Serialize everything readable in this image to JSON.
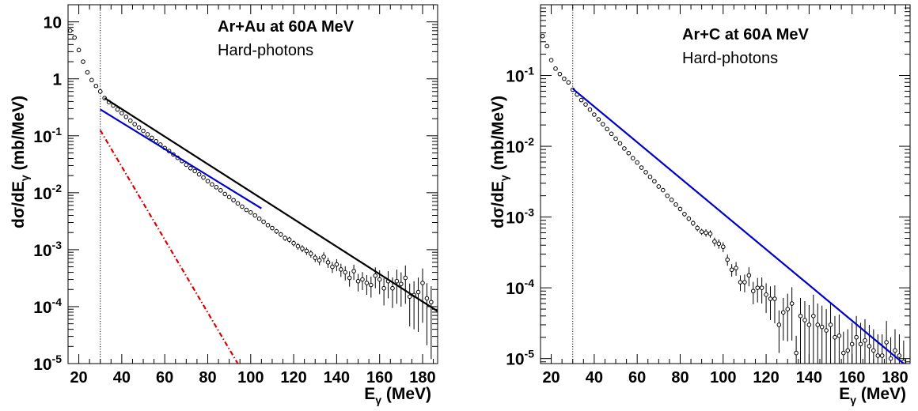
{
  "chart_data": [
    {
      "type": "scatter",
      "title": "Ar+Au at 60A MeV",
      "subtitle": "Hard-photons",
      "xlabel": {
        "main": "E",
        "sub": "γ",
        "unit": "(MeV)"
      },
      "ylabel": {
        "pre": "dσ/dE",
        "sub": "γ",
        "unit": "(mb/MeV)"
      },
      "xlim": [
        15,
        187
      ],
      "ylim": [
        1e-05,
        20
      ],
      "yscale": "log",
      "x_ticks": [
        20,
        40,
        60,
        80,
        100,
        120,
        140,
        160,
        180
      ],
      "y_decades": [
        {
          "value": 10,
          "base": "10",
          "exp": ""
        },
        {
          "value": 1,
          "base": "1",
          "exp": ""
        },
        {
          "value": 0.1,
          "base": "10",
          "exp": "-1"
        },
        {
          "value": 0.01,
          "base": "10",
          "exp": "-2"
        },
        {
          "value": 0.001,
          "base": "10",
          "exp": "-3"
        },
        {
          "value": 0.0001,
          "base": "10",
          "exp": "-4"
        },
        {
          "value": 1e-05,
          "base": "10",
          "exp": "-5"
        }
      ],
      "threshold_line": {
        "x": 30,
        "color": "#000000",
        "style": "dotted"
      },
      "series": [
        {
          "kind": "points",
          "color": "#000000",
          "x": [
            16,
            18,
            20,
            22,
            24,
            26,
            28,
            30,
            32,
            34,
            36,
            38,
            40,
            42,
            44,
            46,
            48,
            50,
            52,
            54,
            56,
            58,
            60,
            62,
            64,
            66,
            68,
            70,
            72,
            74,
            76,
            78,
            80,
            82,
            84,
            86,
            88,
            90,
            92,
            94,
            96,
            98,
            100,
            102,
            104,
            106,
            108,
            110,
            112,
            114,
            116,
            118,
            120,
            122,
            124,
            126,
            128,
            130,
            132,
            134,
            136,
            138,
            140,
            142,
            144,
            146,
            148,
            150,
            152,
            154,
            156,
            158,
            160,
            162,
            164,
            166,
            168,
            170,
            172,
            174,
            176,
            178,
            180,
            182,
            184
          ],
          "y": [
            7,
            5.3,
            3.2,
            2.0,
            1.3,
            0.95,
            0.75,
            0.6,
            0.46,
            0.39,
            0.34,
            0.29,
            0.25,
            0.215,
            0.185,
            0.16,
            0.14,
            0.122,
            0.106,
            0.092,
            0.08,
            0.07,
            0.061,
            0.054,
            0.047,
            0.041,
            0.036,
            0.031,
            0.027,
            0.024,
            0.021,
            0.0185,
            0.016,
            0.014,
            0.0125,
            0.011,
            0.0095,
            0.0084,
            0.0074,
            0.0065,
            0.0057,
            0.005,
            0.0045,
            0.004,
            0.0035,
            0.0031,
            0.0027,
            0.0024,
            0.0021,
            0.00185,
            0.0016,
            0.0015,
            0.0013,
            0.00115,
            0.00105,
            0.00095,
            0.00085,
            0.00072,
            0.00065,
            0.00075,
            0.0006,
            0.0005,
            0.00055,
            0.00045,
            0.0004,
            0.00032,
            0.00042,
            0.00028,
            0.0003,
            0.00026,
            0.00024,
            0.00035,
            0.0003,
            0.00021,
            0.00028,
            0.00021,
            0.00028,
            0.00025,
            0.00032,
            0.00015,
            0.00016,
            0.00018,
            0.00026,
            0.00014,
            0.00012
          ],
          "yerr_rel": [
            0.02,
            0.02,
            0.02,
            0.02,
            0.02,
            0.02,
            0.02,
            0.02,
            0.02,
            0.02,
            0.02,
            0.02,
            0.02,
            0.02,
            0.02,
            0.02,
            0.02,
            0.02,
            0.02,
            0.02,
            0.02,
            0.02,
            0.02,
            0.02,
            0.02,
            0.02,
            0.03,
            0.03,
            0.03,
            0.03,
            0.03,
            0.03,
            0.04,
            0.04,
            0.04,
            0.04,
            0.05,
            0.05,
            0.05,
            0.05,
            0.06,
            0.06,
            0.06,
            0.07,
            0.07,
            0.08,
            0.08,
            0.09,
            0.1,
            0.1,
            0.11,
            0.12,
            0.12,
            0.13,
            0.14,
            0.15,
            0.15,
            0.16,
            0.18,
            0.2,
            0.2,
            0.22,
            0.24,
            0.26,
            0.28,
            0.3,
            0.3,
            0.34,
            0.35,
            0.38,
            0.4,
            0.4,
            0.45,
            0.5,
            0.5,
            0.55,
            0.6,
            0.6,
            0.65,
            0.7,
            0.75,
            0.8,
            0.8,
            0.85,
            0.9
          ]
        },
        {
          "kind": "line",
          "color": "#000000",
          "style": "solid",
          "x": [
            32,
            187
          ],
          "y": [
            0.46,
            8.3e-05
          ]
        },
        {
          "kind": "line",
          "color": "#0000cc",
          "style": "solid",
          "x": [
            30,
            105
          ],
          "y": [
            0.29,
            0.0053
          ]
        },
        {
          "kind": "line",
          "color": "#dd0000",
          "style": "dashdot",
          "x": [
            30,
            94
          ],
          "y": [
            0.125,
            1e-05
          ]
        }
      ]
    },
    {
      "type": "scatter",
      "title": "Ar+C at 60A MeV",
      "subtitle": "Hard-photons",
      "xlabel": {
        "main": "E",
        "sub": "γ",
        "unit": "(MeV)"
      },
      "ylabel": {
        "pre": "dσ/dE",
        "sub": "γ",
        "unit": "(mb/MeV)"
      },
      "xlim": [
        15,
        187
      ],
      "ylim": [
        8.5e-06,
        1.0
      ],
      "yscale": "log",
      "x_ticks": [
        20,
        40,
        60,
        80,
        100,
        120,
        140,
        160,
        180
      ],
      "y_decades": [
        {
          "value": 0.1,
          "base": "10",
          "exp": "-1"
        },
        {
          "value": 0.01,
          "base": "10",
          "exp": "-2"
        },
        {
          "value": 0.001,
          "base": "10",
          "exp": "-3"
        },
        {
          "value": 0.0001,
          "base": "10",
          "exp": "-4"
        },
        {
          "value": 1e-05,
          "base": "10",
          "exp": "-5"
        }
      ],
      "threshold_line": {
        "x": 30,
        "color": "#000000",
        "style": "dotted"
      },
      "series": [
        {
          "kind": "points",
          "color": "#000000",
          "x": [
            16,
            18,
            20,
            22,
            24,
            26,
            28,
            30,
            32,
            34,
            36,
            38,
            40,
            42,
            44,
            46,
            48,
            50,
            52,
            54,
            56,
            58,
            60,
            62,
            64,
            66,
            68,
            70,
            72,
            74,
            76,
            78,
            80,
            82,
            84,
            86,
            88,
            90,
            92,
            94,
            96,
            98,
            100,
            102,
            104,
            106,
            108,
            110,
            112,
            114,
            116,
            118,
            120,
            122,
            124,
            126,
            128,
            130,
            132,
            134,
            136,
            138,
            140,
            142,
            144,
            146,
            148,
            150,
            152,
            154,
            156,
            158,
            160,
            162,
            164,
            166,
            168,
            170,
            172,
            174,
            176,
            178,
            180,
            182,
            184
          ],
          "y": [
            0.36,
            0.26,
            0.165,
            0.125,
            0.105,
            0.09,
            0.08,
            0.063,
            0.054,
            0.045,
            0.039,
            0.033,
            0.028,
            0.024,
            0.0205,
            0.0175,
            0.015,
            0.0128,
            0.011,
            0.0093,
            0.008,
            0.0068,
            0.0059,
            0.005,
            0.0043,
            0.0037,
            0.0032,
            0.0027,
            0.0024,
            0.002,
            0.00175,
            0.0015,
            0.0013,
            0.0011,
            0.00095,
            0.00082,
            0.0007,
            0.00062,
            0.0006,
            0.00058,
            0.00045,
            0.00042,
            0.00038,
            0.00025,
            0.00018,
            0.00019,
            0.00012,
            0.00012,
            0.00015,
            9e-05,
            0.0001,
            0.0001,
            8e-05,
            7e-05,
            7e-05,
            3e-05,
            4.5e-05,
            5e-05,
            6e-05,
            1.2e-05,
            4e-05,
            3.5e-05,
            3e-05,
            4e-05,
            3e-05,
            2.8e-05,
            2.5e-05,
            3e-05,
            2e-05,
            2.1e-05,
            1.2e-05,
            1.3e-05,
            1.6e-05,
            2e-05,
            1.6e-05,
            1.8e-05,
            1.5e-05,
            1.3e-05,
            1.1e-05,
            1.1e-05,
            1.7e-05,
            1e-05,
            1.3e-05,
            1.1e-05,
            9e-06
          ],
          "yerr_rel": [
            0.02,
            0.02,
            0.02,
            0.02,
            0.02,
            0.02,
            0.02,
            0.02,
            0.02,
            0.02,
            0.02,
            0.02,
            0.02,
            0.02,
            0.02,
            0.02,
            0.03,
            0.03,
            0.03,
            0.03,
            0.03,
            0.03,
            0.03,
            0.04,
            0.04,
            0.04,
            0.05,
            0.05,
            0.05,
            0.06,
            0.06,
            0.06,
            0.07,
            0.08,
            0.08,
            0.09,
            0.1,
            0.1,
            0.12,
            0.12,
            0.14,
            0.15,
            0.16,
            0.18,
            0.2,
            0.22,
            0.25,
            0.28,
            0.3,
            0.35,
            0.38,
            0.4,
            0.45,
            0.5,
            0.55,
            0.6,
            0.6,
            0.65,
            0.7,
            0.75,
            0.8,
            0.85,
            0.9,
            1.0,
            1.0,
            1.0,
            1.0,
            1.0,
            1.0,
            1.0,
            1.0,
            1.0,
            1.0,
            1.0,
            1.0,
            1.0,
            1.0,
            1.0,
            1.0,
            1.0,
            1.0,
            1.0,
            1.0,
            1.0,
            1.0
          ]
        },
        {
          "kind": "line",
          "color": "#0000cc",
          "style": "solid",
          "x": [
            30,
            184
          ],
          "y": [
            0.065,
            8.5e-06
          ]
        }
      ]
    }
  ]
}
